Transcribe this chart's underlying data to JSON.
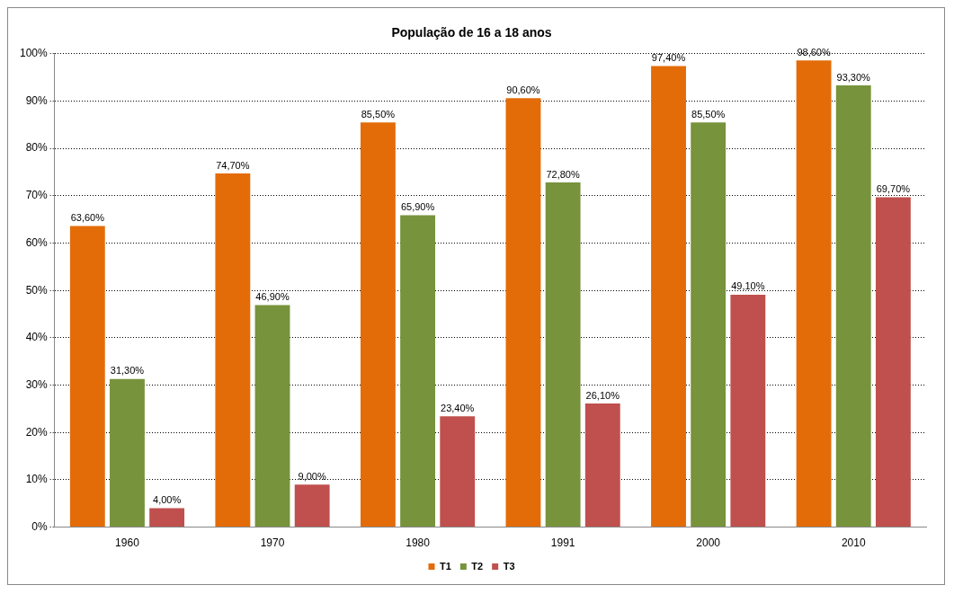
{
  "chart_data": {
    "type": "bar",
    "title": "População de 16 a 18 anos",
    "categories": [
      "1960",
      "1970",
      "1980",
      "1991",
      "2000",
      "2010"
    ],
    "series": [
      {
        "name": "T1",
        "color": "#e36c09",
        "values": [
          63.6,
          74.7,
          85.5,
          90.6,
          97.4,
          98.6
        ],
        "value_labels": [
          "63,60%",
          "74,70%",
          "85,50%",
          "90,60%",
          "97,40%",
          "98,60%"
        ]
      },
      {
        "name": "T2",
        "color": "#77933c",
        "values": [
          31.3,
          46.9,
          65.9,
          72.8,
          85.5,
          93.3
        ],
        "value_labels": [
          "31,30%",
          "46,90%",
          "65,90%",
          "72,80%",
          "85,50%",
          "93,30%"
        ]
      },
      {
        "name": "T3",
        "color": "#c0504d",
        "values": [
          4.0,
          9.0,
          23.4,
          26.1,
          49.1,
          69.7
        ],
        "value_labels": [
          "4,00%",
          "9,00%",
          "23,40%",
          "26,10%",
          "49,10%",
          "69,70%"
        ]
      }
    ],
    "ylim": [
      0,
      100
    ],
    "yticks": [
      {
        "value": 0,
        "label": "0%"
      },
      {
        "value": 10,
        "label": "10%"
      },
      {
        "value": 20,
        "label": "20%"
      },
      {
        "value": 30,
        "label": "30%"
      },
      {
        "value": 40,
        "label": "40%"
      },
      {
        "value": 50,
        "label": "50%"
      },
      {
        "value": 60,
        "label": "60%"
      },
      {
        "value": 70,
        "label": "70%"
      },
      {
        "value": 80,
        "label": "80%"
      },
      {
        "value": 90,
        "label": "90%"
      },
      {
        "value": 100,
        "label": "100%"
      }
    ],
    "grid": "y",
    "legend": "bottom"
  }
}
